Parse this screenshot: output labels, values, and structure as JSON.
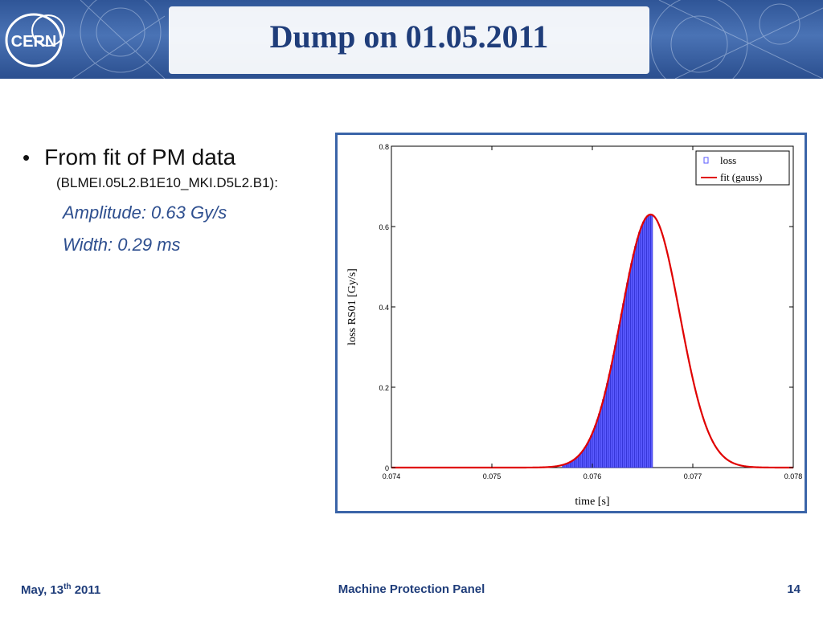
{
  "header": {
    "title": "Dump on 01.05.2011",
    "logo_text": "CERN",
    "colors": {
      "banner": "#2f5597",
      "title": "#1f3d7a"
    }
  },
  "bullets": {
    "main": "From fit of PM data",
    "source": "(BLMEI.05L2.B1E10_MKI.D5L2.B1):",
    "amplitude": "Amplitude: 0.63 Gy/s",
    "width": "Width: 0.29 ms"
  },
  "chart_data": {
    "type": "bar",
    "xlabel_main": "time",
    "xlabel_unit": "[s]",
    "ylabel": "loss RS01 [Gy/s]",
    "xlim": [
      0.074,
      0.078
    ],
    "ylim": [
      0,
      0.8
    ],
    "xticks": [
      "0.074",
      "0.075",
      "0.076",
      "0.077",
      "0.078"
    ],
    "yticks": [
      "0",
      "0.2",
      "0.4",
      "0.6",
      "0.8"
    ],
    "grid": false,
    "legend": {
      "placement": "top-right",
      "entries": [
        "loss",
        "fit (gauss)"
      ]
    },
    "bar_color": "#5a5aff",
    "fit_color": "#e00000",
    "bars": {
      "x_start": 0.0757,
      "x_end": 0.0766,
      "bin_width": 2e-05
    },
    "series": [
      {
        "name": "loss",
        "kind": "histogram"
      },
      {
        "name": "fit (gauss)",
        "kind": "gaussian",
        "amplitude": 0.63,
        "center": 0.07658,
        "sigma": 0.00029
      }
    ]
  },
  "footer": {
    "date": "May, 13",
    "date_sup": "th",
    "date_year": " 2011",
    "center": "Machine Protection Panel",
    "page": "14"
  }
}
